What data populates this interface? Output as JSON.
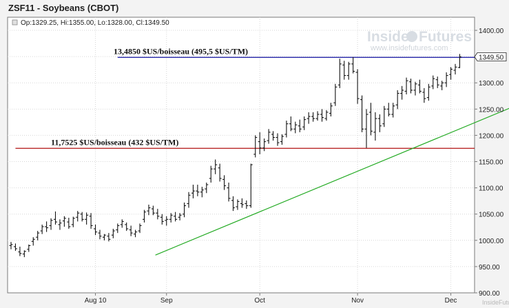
{
  "chart_data": {
    "type": "ohlc",
    "title": "ZSF11 - Soybeans (CBOT)",
    "legend": {
      "Op": "1329.25",
      "Hi": "1355.00",
      "Lo": "1328.00",
      "Cl": "1349.50",
      "text": "Op:1329.25, Hi:1355.00, Lo:1328.00, Cl:1349.50"
    },
    "ylim": [
      900,
      1425
    ],
    "y_ticks": [
      "1400.00",
      "1350.00",
      "1300.00",
      "1250.00",
      "1200.00",
      "1150.00",
      "1100.00",
      "1050.00",
      "1000.00",
      "950.00",
      "900.00"
    ],
    "y_tick_values": [
      1400,
      1350,
      1300,
      1250,
      1200,
      1150,
      1100,
      1050,
      1000,
      950,
      900
    ],
    "x_ticks": [
      {
        "label": "Aug 10",
        "index": 19
      },
      {
        "label": "Sep",
        "index": 35
      },
      {
        "label": "Oct",
        "index": 56
      },
      {
        "label": "Nov",
        "index": 78
      },
      {
        "label": "Dec",
        "index": 99
      }
    ],
    "grid": true,
    "last_price_label": "1349.50",
    "last_price": 1349.5,
    "levels": [
      {
        "label": "13,4850 $US/boisseau (495,5 $US/TM)",
        "value": 1348.5,
        "color": "#1010a0",
        "start_index": 24
      },
      {
        "label": "11,7525 $US/boisseau (432 $US/TM)",
        "value": 1175.25,
        "color": "#b01010",
        "start_index": 1
      }
    ],
    "trendline": {
      "color": "#22aa22",
      "start": {
        "index": 32.5,
        "value": 972
      },
      "end": {
        "index": 122,
        "value": 1286
      }
    },
    "bars": [
      {
        "o": 990,
        "h": 997,
        "l": 983,
        "c": 992
      },
      {
        "o": 988,
        "h": 994,
        "l": 980,
        "c": 984
      },
      {
        "o": 978,
        "h": 988,
        "l": 970,
        "c": 975
      },
      {
        "o": 974,
        "h": 981,
        "l": 968,
        "c": 979
      },
      {
        "o": 983,
        "h": 992,
        "l": 978,
        "c": 990
      },
      {
        "o": 998,
        "h": 1006,
        "l": 990,
        "c": 1002
      },
      {
        "o": 1006,
        "h": 1018,
        "l": 1000,
        "c": 1014
      },
      {
        "o": 1018,
        "h": 1030,
        "l": 1012,
        "c": 1026
      },
      {
        "o": 1026,
        "h": 1036,
        "l": 1016,
        "c": 1024
      },
      {
        "o": 1028,
        "h": 1042,
        "l": 1020,
        "c": 1038
      },
      {
        "o": 1040,
        "h": 1055,
        "l": 1030,
        "c": 1035
      },
      {
        "o": 1030,
        "h": 1040,
        "l": 1020,
        "c": 1033
      },
      {
        "o": 1037,
        "h": 1046,
        "l": 1026,
        "c": 1042
      },
      {
        "o": 1035,
        "h": 1043,
        "l": 1022,
        "c": 1026
      },
      {
        "o": 1030,
        "h": 1045,
        "l": 1025,
        "c": 1042
      },
      {
        "o": 1044,
        "h": 1056,
        "l": 1036,
        "c": 1052
      },
      {
        "o": 1050,
        "h": 1054,
        "l": 1036,
        "c": 1040
      },
      {
        "o": 1040,
        "h": 1053,
        "l": 1030,
        "c": 1048
      },
      {
        "o": 1046,
        "h": 1052,
        "l": 1022,
        "c": 1028
      },
      {
        "o": 1022,
        "h": 1030,
        "l": 1010,
        "c": 1016
      },
      {
        "o": 1014,
        "h": 1020,
        "l": 1002,
        "c": 1008
      },
      {
        "o": 1006,
        "h": 1012,
        "l": 1000,
        "c": 1010
      },
      {
        "o": 1008,
        "h": 1014,
        "l": 998,
        "c": 1002
      },
      {
        "o": 1010,
        "h": 1022,
        "l": 1004,
        "c": 1018
      },
      {
        "o": 1020,
        "h": 1032,
        "l": 1014,
        "c": 1028
      },
      {
        "o": 1030,
        "h": 1040,
        "l": 1024,
        "c": 1036
      },
      {
        "o": 1030,
        "h": 1034,
        "l": 1018,
        "c": 1022
      },
      {
        "o": 1020,
        "h": 1028,
        "l": 1008,
        "c": 1014
      },
      {
        "o": 1012,
        "h": 1020,
        "l": 1006,
        "c": 1016
      },
      {
        "o": 1018,
        "h": 1032,
        "l": 1014,
        "c": 1028
      },
      {
        "o": 1040,
        "h": 1058,
        "l": 1034,
        "c": 1054
      },
      {
        "o": 1056,
        "h": 1068,
        "l": 1048,
        "c": 1062
      },
      {
        "o": 1060,
        "h": 1066,
        "l": 1048,
        "c": 1052
      },
      {
        "o": 1052,
        "h": 1060,
        "l": 1040,
        "c": 1046
      },
      {
        "o": 1044,
        "h": 1050,
        "l": 1030,
        "c": 1036
      },
      {
        "o": 1038,
        "h": 1046,
        "l": 1028,
        "c": 1040
      },
      {
        "o": 1040,
        "h": 1052,
        "l": 1034,
        "c": 1048
      },
      {
        "o": 1046,
        "h": 1054,
        "l": 1036,
        "c": 1040
      },
      {
        "o": 1044,
        "h": 1052,
        "l": 1038,
        "c": 1048
      },
      {
        "o": 1050,
        "h": 1072,
        "l": 1044,
        "c": 1066
      },
      {
        "o": 1070,
        "h": 1092,
        "l": 1062,
        "c": 1086
      },
      {
        "o": 1090,
        "h": 1106,
        "l": 1080,
        "c": 1094
      },
      {
        "o": 1094,
        "h": 1106,
        "l": 1084,
        "c": 1092
      },
      {
        "o": 1092,
        "h": 1102,
        "l": 1082,
        "c": 1096
      },
      {
        "o": 1098,
        "h": 1110,
        "l": 1090,
        "c": 1106
      },
      {
        "o": 1118,
        "h": 1142,
        "l": 1110,
        "c": 1136
      },
      {
        "o": 1136,
        "h": 1154,
        "l": 1126,
        "c": 1144
      },
      {
        "o": 1138,
        "h": 1146,
        "l": 1112,
        "c": 1118
      },
      {
        "o": 1116,
        "h": 1124,
        "l": 1096,
        "c": 1104
      },
      {
        "o": 1100,
        "h": 1110,
        "l": 1074,
        "c": 1080
      },
      {
        "o": 1076,
        "h": 1084,
        "l": 1056,
        "c": 1062
      },
      {
        "o": 1064,
        "h": 1078,
        "l": 1058,
        "c": 1074
      },
      {
        "o": 1070,
        "h": 1080,
        "l": 1062,
        "c": 1068
      },
      {
        "o": 1070,
        "h": 1076,
        "l": 1060,
        "c": 1066
      },
      {
        "o": 1066,
        "h": 1146,
        "l": 1062,
        "c": 1144
      },
      {
        "o": 1164,
        "h": 1200,
        "l": 1158,
        "c": 1196
      },
      {
        "o": 1188,
        "h": 1206,
        "l": 1164,
        "c": 1176
      },
      {
        "o": 1176,
        "h": 1194,
        "l": 1170,
        "c": 1188
      },
      {
        "o": 1190,
        "h": 1212,
        "l": 1184,
        "c": 1206
      },
      {
        "o": 1202,
        "h": 1208,
        "l": 1190,
        "c": 1196
      },
      {
        "o": 1196,
        "h": 1204,
        "l": 1180,
        "c": 1186
      },
      {
        "o": 1188,
        "h": 1202,
        "l": 1182,
        "c": 1198
      },
      {
        "o": 1202,
        "h": 1228,
        "l": 1196,
        "c": 1222
      },
      {
        "o": 1222,
        "h": 1236,
        "l": 1208,
        "c": 1212
      },
      {
        "o": 1212,
        "h": 1226,
        "l": 1204,
        "c": 1220
      },
      {
        "o": 1218,
        "h": 1230,
        "l": 1206,
        "c": 1212
      },
      {
        "o": 1216,
        "h": 1236,
        "l": 1210,
        "c": 1230
      },
      {
        "o": 1232,
        "h": 1244,
        "l": 1222,
        "c": 1236
      },
      {
        "o": 1236,
        "h": 1244,
        "l": 1226,
        "c": 1232
      },
      {
        "o": 1232,
        "h": 1246,
        "l": 1228,
        "c": 1240
      },
      {
        "o": 1240,
        "h": 1250,
        "l": 1226,
        "c": 1234
      },
      {
        "o": 1232,
        "h": 1248,
        "l": 1228,
        "c": 1244
      },
      {
        "o": 1242,
        "h": 1262,
        "l": 1236,
        "c": 1256
      },
      {
        "o": 1262,
        "h": 1298,
        "l": 1256,
        "c": 1292
      },
      {
        "o": 1296,
        "h": 1346,
        "l": 1290,
        "c": 1336
      },
      {
        "o": 1334,
        "h": 1342,
        "l": 1306,
        "c": 1314
      },
      {
        "o": 1314,
        "h": 1340,
        "l": 1306,
        "c": 1336
      },
      {
        "o": 1336,
        "h": 1349,
        "l": 1318,
        "c": 1322
      },
      {
        "o": 1320,
        "h": 1326,
        "l": 1260,
        "c": 1270
      },
      {
        "o": 1268,
        "h": 1276,
        "l": 1206,
        "c": 1212
      },
      {
        "o": 1212,
        "h": 1250,
        "l": 1176,
        "c": 1240
      },
      {
        "o": 1244,
        "h": 1262,
        "l": 1200,
        "c": 1208
      },
      {
        "o": 1206,
        "h": 1244,
        "l": 1190,
        "c": 1232
      },
      {
        "o": 1232,
        "h": 1240,
        "l": 1206,
        "c": 1218
      },
      {
        "o": 1222,
        "h": 1256,
        "l": 1216,
        "c": 1250
      },
      {
        "o": 1250,
        "h": 1262,
        "l": 1236,
        "c": 1240
      },
      {
        "o": 1240,
        "h": 1262,
        "l": 1234,
        "c": 1256
      },
      {
        "o": 1258,
        "h": 1286,
        "l": 1250,
        "c": 1280
      },
      {
        "o": 1280,
        "h": 1294,
        "l": 1268,
        "c": 1286
      },
      {
        "o": 1284,
        "h": 1310,
        "l": 1278,
        "c": 1304
      },
      {
        "o": 1302,
        "h": 1308,
        "l": 1280,
        "c": 1286
      },
      {
        "o": 1286,
        "h": 1302,
        "l": 1276,
        "c": 1298
      },
      {
        "o": 1296,
        "h": 1306,
        "l": 1280,
        "c": 1284
      },
      {
        "o": 1282,
        "h": 1290,
        "l": 1262,
        "c": 1270
      },
      {
        "o": 1272,
        "h": 1298,
        "l": 1266,
        "c": 1292
      },
      {
        "o": 1294,
        "h": 1314,
        "l": 1288,
        "c": 1308
      },
      {
        "o": 1306,
        "h": 1312,
        "l": 1290,
        "c": 1296
      },
      {
        "o": 1294,
        "h": 1304,
        "l": 1286,
        "c": 1300
      },
      {
        "o": 1300,
        "h": 1320,
        "l": 1292,
        "c": 1314
      },
      {
        "o": 1316,
        "h": 1330,
        "l": 1306,
        "c": 1326
      },
      {
        "o": 1324,
        "h": 1336,
        "l": 1316,
        "c": 1330
      },
      {
        "o": 1329.25,
        "h": 1355,
        "l": 1328,
        "c": 1349.5
      }
    ]
  },
  "footer_watermark": "InsideFutures.com",
  "watermark": {
    "brand_inside": "Inside",
    "brand_futures": "Futures",
    "url": "www.insidefutures.com"
  },
  "colors": {
    "plot_bg": "#ffffff",
    "page_bg": "#f3f3f3",
    "grid": "#d6d6d6",
    "bar": "#111111",
    "resistance": "#1010a0",
    "support": "#b01010",
    "trend": "#22aa22"
  }
}
